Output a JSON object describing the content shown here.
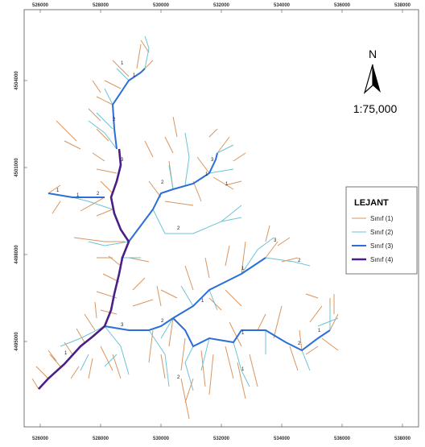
{
  "map": {
    "x_labels_top": [
      "526000",
      "528000",
      "530000",
      "532000",
      "534000",
      "536000",
      "538000"
    ],
    "x_labels_bottom": [
      "526000",
      "528000",
      "530000",
      "532000",
      "534000",
      "536000",
      "538000"
    ],
    "y_labels": [
      "4504000",
      "4501000",
      "4498000",
      "4495000"
    ],
    "north": "N",
    "scale": "1:75,000",
    "legend": {
      "title": "LEJANT",
      "items": [
        "Sınıf (1)",
        "Sınıf (2)",
        "Sınıf (3)",
        "Sınıf (4)"
      ]
    },
    "stream_labels": [
      "1",
      "2",
      "1",
      "3",
      "2",
      "1",
      "1",
      "2",
      "3",
      "1",
      "2",
      "1",
      "3",
      "2",
      "1",
      "1",
      "2",
      "3",
      "1",
      "2",
      "1",
      "1",
      "2",
      "1"
    ]
  }
}
